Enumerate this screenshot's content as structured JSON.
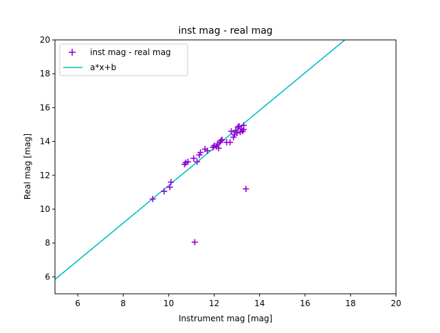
{
  "chart_data": {
    "type": "scatter",
    "title": "inst mag - real mag",
    "xlabel": "Instrument mag [mag]",
    "ylabel": "Real mag [mag]",
    "xlim": [
      5,
      20
    ],
    "ylim": [
      5,
      20
    ],
    "xticks": [
      6,
      8,
      10,
      12,
      14,
      16,
      18,
      20
    ],
    "yticks": [
      6,
      8,
      10,
      12,
      14,
      16,
      18,
      20
    ],
    "grid": false,
    "legend_position": "top-left",
    "colors": {
      "scatter": "#9400D3",
      "fit": "#00BFBF",
      "axes": "#000000"
    },
    "series": [
      {
        "name": "inst mag - real mag",
        "marker": "plus",
        "points": [
          [
            9.3,
            10.6
          ],
          [
            9.8,
            11.05
          ],
          [
            10.05,
            11.3
          ],
          [
            10.1,
            11.6
          ],
          [
            10.7,
            12.65
          ],
          [
            10.75,
            12.75
          ],
          [
            10.85,
            12.8
          ],
          [
            11.1,
            13.0
          ],
          [
            11.25,
            12.8
          ],
          [
            11.35,
            13.2
          ],
          [
            11.4,
            13.35
          ],
          [
            11.6,
            13.55
          ],
          [
            11.7,
            13.45
          ],
          [
            11.95,
            13.65
          ],
          [
            12.0,
            13.75
          ],
          [
            12.1,
            13.7
          ],
          [
            12.15,
            13.85
          ],
          [
            12.2,
            13.6
          ],
          [
            12.25,
            13.95
          ],
          [
            12.3,
            14.05
          ],
          [
            12.35,
            14.1
          ],
          [
            12.55,
            13.95
          ],
          [
            12.7,
            13.95
          ],
          [
            12.75,
            14.6
          ],
          [
            12.85,
            14.25
          ],
          [
            12.9,
            14.4
          ],
          [
            12.95,
            14.65
          ],
          [
            13.0,
            14.5
          ],
          [
            13.05,
            14.85
          ],
          [
            13.1,
            14.9
          ],
          [
            13.15,
            14.55
          ],
          [
            13.2,
            14.75
          ],
          [
            13.25,
            14.6
          ],
          [
            13.3,
            14.95
          ],
          [
            13.3,
            14.7
          ],
          [
            13.4,
            11.2
          ],
          [
            11.15,
            8.05
          ]
        ]
      },
      {
        "name": "a*x+b",
        "type": "line",
        "x": [
          5,
          17.75
        ],
        "y": [
          5.85,
          20.0
        ]
      }
    ]
  }
}
